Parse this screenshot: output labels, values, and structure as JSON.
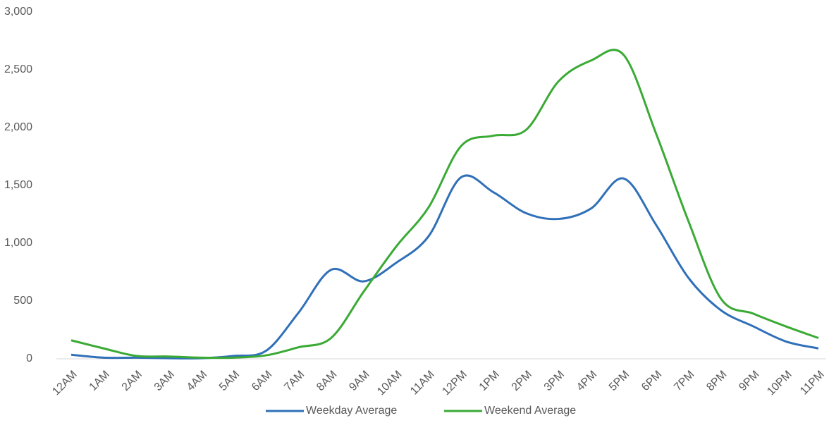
{
  "chart_data": {
    "type": "line",
    "categories": [
      "12AM",
      "1AM",
      "2AM",
      "3AM",
      "4AM",
      "5AM",
      "6AM",
      "7AM",
      "8AM",
      "9AM",
      "10AM",
      "11AM",
      "12PM",
      "1PM",
      "2PM",
      "3PM",
      "4PM",
      "5PM",
      "6PM",
      "7PM",
      "8PM",
      "9PM",
      "10PM",
      "11PM"
    ],
    "series": [
      {
        "name": "Weekday Average",
        "color": "#3070b8",
        "values": [
          35,
          10,
          10,
          5,
          5,
          25,
          70,
          400,
          770,
          670,
          830,
          1060,
          1570,
          1440,
          1260,
          1210,
          1300,
          1560,
          1160,
          700,
          420,
          280,
          150,
          90
        ]
      },
      {
        "name": "Weekend Average",
        "color": "#3aaa35",
        "values": [
          160,
          90,
          25,
          20,
          10,
          10,
          30,
          100,
          180,
          580,
          970,
          1310,
          1840,
          1930,
          1980,
          2400,
          2580,
          2630,
          1950,
          1190,
          520,
          390,
          280,
          180
        ]
      }
    ],
    "ylim": [
      0,
      3000
    ],
    "yticks": [
      0,
      500,
      {
        "value": 1000,
        "label": "1,000"
      },
      {
        "value": 1500,
        "label": "1,500"
      },
      {
        "value": 2000,
        "label": "2,000"
      },
      {
        "value": 2500,
        "label": "2,500"
      },
      {
        "value": 3000,
        "label": "3,000"
      }
    ],
    "grid": false,
    "smooth": true,
    "legend": "bottom"
  }
}
